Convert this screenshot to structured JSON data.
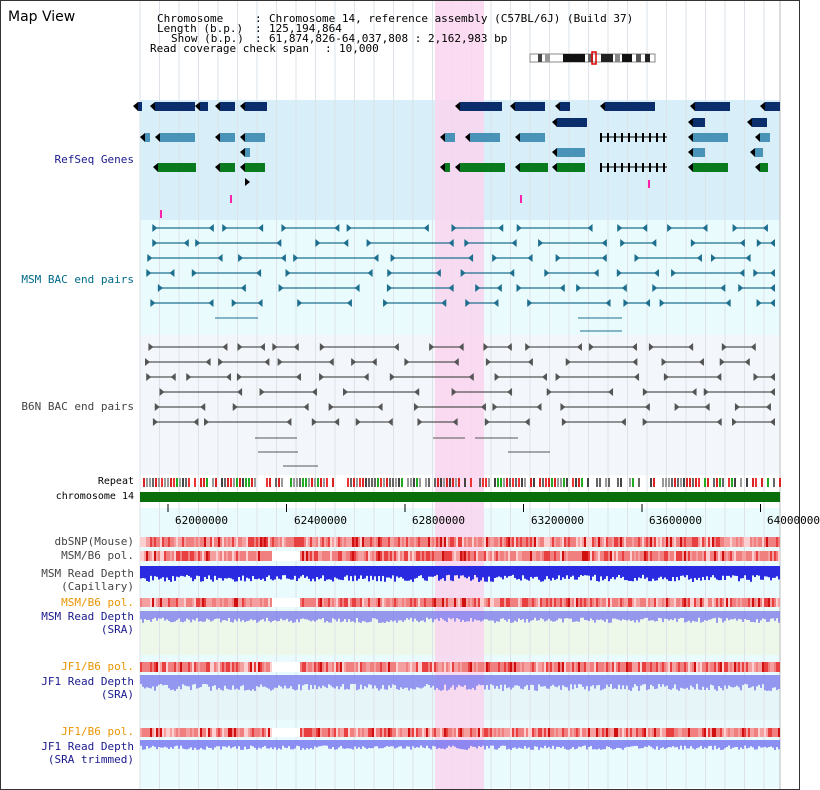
{
  "page": {
    "title": "Map View"
  },
  "header": {
    "chromosome_label": "Chromosome",
    "chromosome_value": "Chromosome 14, reference assembly (C57BL/6J) (Build 37)",
    "length_label": "Length (b.p.)",
    "length_value": "125,194,864",
    "show_label": "Show (b.p.)",
    "show_value": "61,874,826-64,037,808 : 2,162,983 bp",
    "read_coverage_label": "Read coverage check span",
    "read_coverage_value": "10,000"
  },
  "tracks": {
    "refseq": "RefSeq Genes",
    "msm_bac": "MSM BAC end pairs",
    "b6n_bac": "B6N BAC end pairs",
    "repeat": "Repeat",
    "chromosome": "chromosome 14",
    "dbsnp": "dbSNP(Mouse)",
    "msm_b6_pol_1": "MSM/B6 pol.",
    "msm_depth_cap_1": "MSM Read Depth",
    "msm_depth_cap_2": "(Capillary)",
    "msm_b6_pol_2": "MSM/B6 pol.",
    "msm_depth_sra_1": "MSM Read Depth",
    "msm_depth_sra_2": "(SRA)",
    "jf1_b6_pol_1": "JF1/B6 pol.",
    "jf1_depth_sra_1": "JF1 Read Depth",
    "jf1_depth_sra_2": "(SRA)",
    "jf1_b6_pol_2": "JF1/B6 pol.",
    "jf1_depth_trim_1": "JF1 Read Depth",
    "jf1_depth_trim_2": "(SRA trimmed)"
  },
  "axis": {
    "ticks": [
      "62000000",
      "62400000",
      "62800000",
      "63200000",
      "63600000",
      "64000000"
    ]
  },
  "colors": {
    "refseq_bg": "#d8eff9",
    "track_bg": "#e9fbfc",
    "highlight": "#f9d5ef",
    "gene_navy": "#0b2d6b",
    "gene_blue": "#4a93b8",
    "gene_green": "#0a7a1e",
    "msm_bac": "#1e6f8f",
    "b6n_bac": "#555555",
    "chromosome": "#0a6e0a",
    "depth_blue": "#2a2ae0",
    "depth_light": "#7777ee"
  }
}
